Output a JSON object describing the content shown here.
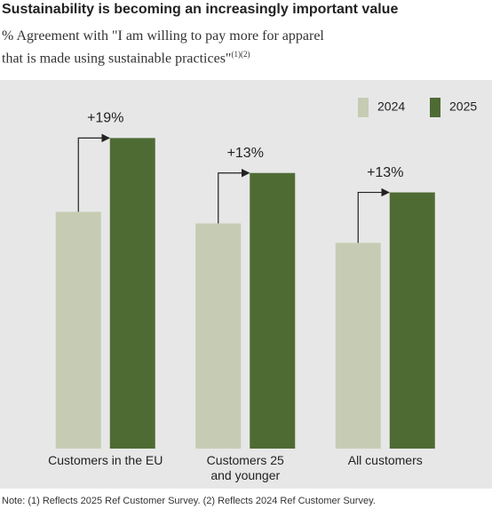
{
  "chart_data": {
    "type": "bar",
    "title": "Sustainability is becoming an increasingly important value",
    "subtitle": "% Agreement with \"I am willing to pay more for apparel\nthat is made using sustainable practices\"",
    "subtitle_note": "(1)(2)",
    "categories": [
      "Customers in the EU",
      "Customers 25\nand younger",
      "All customers"
    ],
    "series": [
      {
        "name": "2024",
        "color": "#c6ccb3",
        "values": [
          61,
          58,
          53
        ]
      },
      {
        "name": "2025",
        "color": "#4e6b34",
        "values": [
          80,
          71,
          66
        ]
      }
    ],
    "annotations": [
      "+19%",
      "+13%",
      "+13%"
    ],
    "ylim": [
      0,
      100
    ],
    "legend": "top-right",
    "note": "Note: (1) Reflects 2025 Ref Customer Survey. (2) Reflects 2024 Ref Customer Survey."
  }
}
